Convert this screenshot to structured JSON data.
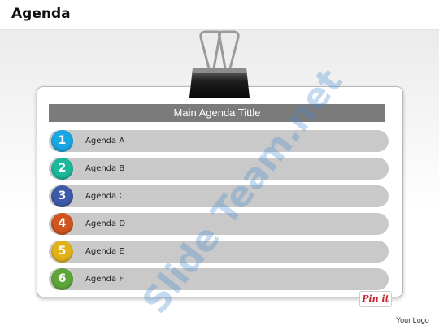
{
  "slide": {
    "title": "Agenda"
  },
  "board": {
    "banner": "Main Agenda Tittle",
    "items": [
      {
        "number": "1",
        "label": "Agenda A",
        "color": "#1aa6e2"
      },
      {
        "number": "2",
        "label": "Agenda B",
        "color": "#1bb89a"
      },
      {
        "number": "3",
        "label": "Agenda C",
        "color": "#3d5aa8"
      },
      {
        "number": "4",
        "label": "Agenda D",
        "color": "#d0551e"
      },
      {
        "number": "5",
        "label": "Agenda E",
        "color": "#e2b21a"
      },
      {
        "number": "6",
        "label": "Agenda F",
        "color": "#5ea63a"
      }
    ]
  },
  "watermark": "Slide Team.net",
  "pinit": "Pin it",
  "footer": {
    "logo": "Your Logo"
  },
  "icons": {
    "clip": "binder-clip-icon"
  }
}
